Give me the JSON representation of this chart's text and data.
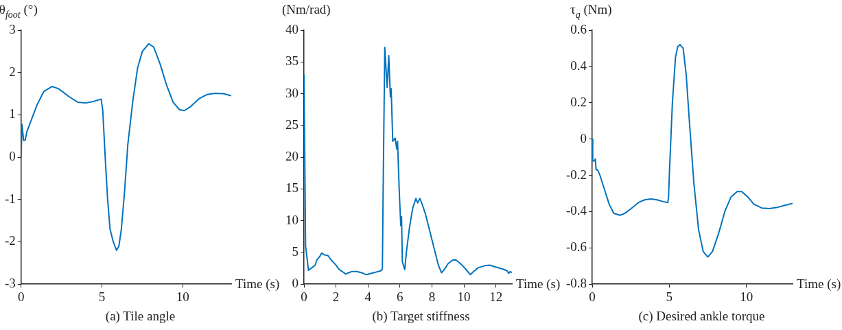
{
  "chart_data": [
    {
      "type": "line",
      "title": "(a) Tile angle",
      "ylabel": "θ$_{foot}$ (°)",
      "xlabel": "Time (s)",
      "color": "#0072bd",
      "marker": "none",
      "xlim": [
        0,
        13
      ],
      "xticks": [
        0,
        5,
        10
      ],
      "ylim": [
        -3,
        3
      ],
      "yticks": [
        -3,
        -2,
        -1,
        0,
        1,
        2,
        3
      ],
      "x": [
        0,
        0.05,
        0.15,
        0.25,
        0.35,
        0.6,
        1,
        1.4,
        1.9,
        2.3,
        3,
        3.5,
        4,
        4.5,
        4.95,
        5.05,
        5.2,
        5.35,
        5.5,
        5.7,
        5.9,
        6.05,
        6.2,
        6.4,
        6.6,
        6.9,
        7.2,
        7.5,
        7.9,
        8.2,
        8.6,
        9,
        9.4,
        9.8,
        10.1,
        10.5,
        11,
        11.5,
        12,
        12.5,
        13
      ],
      "values": [
        0,
        0.78,
        0.4,
        0.4,
        0.6,
        0.85,
        1.25,
        1.55,
        1.67,
        1.62,
        1.42,
        1.3,
        1.28,
        1.32,
        1.37,
        1.1,
        0,
        -1.0,
        -1.7,
        -2.0,
        -2.2,
        -2.1,
        -1.7,
        -0.8,
        0.3,
        1.3,
        2.1,
        2.5,
        2.68,
        2.6,
        2.2,
        1.7,
        1.3,
        1.12,
        1.1,
        1.2,
        1.38,
        1.48,
        1.51,
        1.5,
        1.45
      ]
    },
    {
      "type": "line",
      "title": "(b) Target stiffness",
      "ylabel": "(Nm/rad)",
      "xlabel": "Time (s)",
      "color": "#0072bd",
      "marker": "none",
      "xlim": [
        0,
        13
      ],
      "xticks": [
        0,
        2,
        4,
        6,
        8,
        10,
        12
      ],
      "ylim": [
        0,
        40
      ],
      "yticks": [
        0,
        5,
        10,
        15,
        20,
        25,
        30,
        35,
        40
      ],
      "x": [
        0,
        0.05,
        0.1,
        0.28,
        0.5,
        0.7,
        0.8,
        1.0,
        1.1,
        1.3,
        1.5,
        1.7,
        2.0,
        2.2,
        2.5,
        2.6,
        2.8,
        3.0,
        3.3,
        3.6,
        3.9,
        4.2,
        4.5,
        4.8,
        4.9,
        4.95,
        5.05,
        5.2,
        5.3,
        5.4,
        5.45,
        5.55,
        5.7,
        5.8,
        5.85,
        5.95,
        6.05,
        6.1,
        6.15,
        6.3,
        6.4,
        6.6,
        6.8,
        7.0,
        7.1,
        7.25,
        7.4,
        7.6,
        7.8,
        8.0,
        8.2,
        8.4,
        8.6,
        8.8,
        9.0,
        9.3,
        9.5,
        9.8,
        10.1,
        10.4,
        10.6,
        10.9,
        11.3,
        11.6,
        12.0,
        12.4,
        12.7,
        12.8,
        12.9,
        13
      ],
      "values": [
        33,
        20,
        6,
        2.2,
        2.6,
        3.0,
        3.8,
        4.4,
        4.9,
        4.6,
        4.5,
        3.8,
        3.0,
        2.3,
        1.8,
        1.6,
        1.8,
        2.0,
        2.0,
        1.8,
        1.5,
        1.7,
        1.9,
        2.1,
        2.4,
        15,
        37.3,
        31,
        36,
        29.5,
        30.8,
        22.5,
        23,
        21.3,
        22.5,
        15,
        9.2,
        10.6,
        3.5,
        2.3,
        5,
        9,
        12,
        13.5,
        12.8,
        13.5,
        12.5,
        11,
        9,
        7,
        5,
        3,
        1.8,
        2.4,
        3.2,
        3.8,
        3.8,
        3.2,
        2.4,
        1.5,
        2.0,
        2.6,
        2.9,
        3.0,
        2.7,
        2.4,
        2.1,
        1.7,
        2.0,
        1.8
      ]
    },
    {
      "type": "line",
      "title": "(c) Desired ankle torque",
      "ylabel": "τ$_{q}$ (Nm)",
      "xlabel": "Time (s)",
      "color": "#0072bd",
      "marker": "none",
      "xlim": [
        0,
        13
      ],
      "xticks": [
        0,
        5,
        10
      ],
      "ylim": [
        -0.8,
        0.6
      ],
      "yticks": [
        -0.8,
        -0.6,
        -0.4,
        -0.2,
        0,
        0.2,
        0.4,
        0.6
      ],
      "x": [
        0,
        0.03,
        0.15,
        0.2,
        0.25,
        0.35,
        0.5,
        0.8,
        1.1,
        1.4,
        1.8,
        2.1,
        2.5,
        3.0,
        3.4,
        3.8,
        4.2,
        4.6,
        4.9,
        4.95,
        5.0,
        5.2,
        5.4,
        5.55,
        5.7,
        5.9,
        6.1,
        6.3,
        6.6,
        6.9,
        7.2,
        7.5,
        7.8,
        8.2,
        8.6,
        9.0,
        9.4,
        9.7,
        10.1,
        10.5,
        11,
        11.5,
        12,
        12.5,
        13
      ],
      "values": [
        0,
        -0.12,
        -0.12,
        -0.11,
        -0.17,
        -0.17,
        -0.2,
        -0.28,
        -0.36,
        -0.41,
        -0.42,
        -0.41,
        -0.385,
        -0.35,
        -0.335,
        -0.33,
        -0.335,
        -0.345,
        -0.35,
        -0.32,
        -0.2,
        0.2,
        0.45,
        0.51,
        0.52,
        0.5,
        0.35,
        0.1,
        -0.25,
        -0.5,
        -0.62,
        -0.65,
        -0.62,
        -0.52,
        -0.4,
        -0.32,
        -0.29,
        -0.29,
        -0.32,
        -0.36,
        -0.38,
        -0.383,
        -0.377,
        -0.365,
        -0.355
      ]
    }
  ]
}
